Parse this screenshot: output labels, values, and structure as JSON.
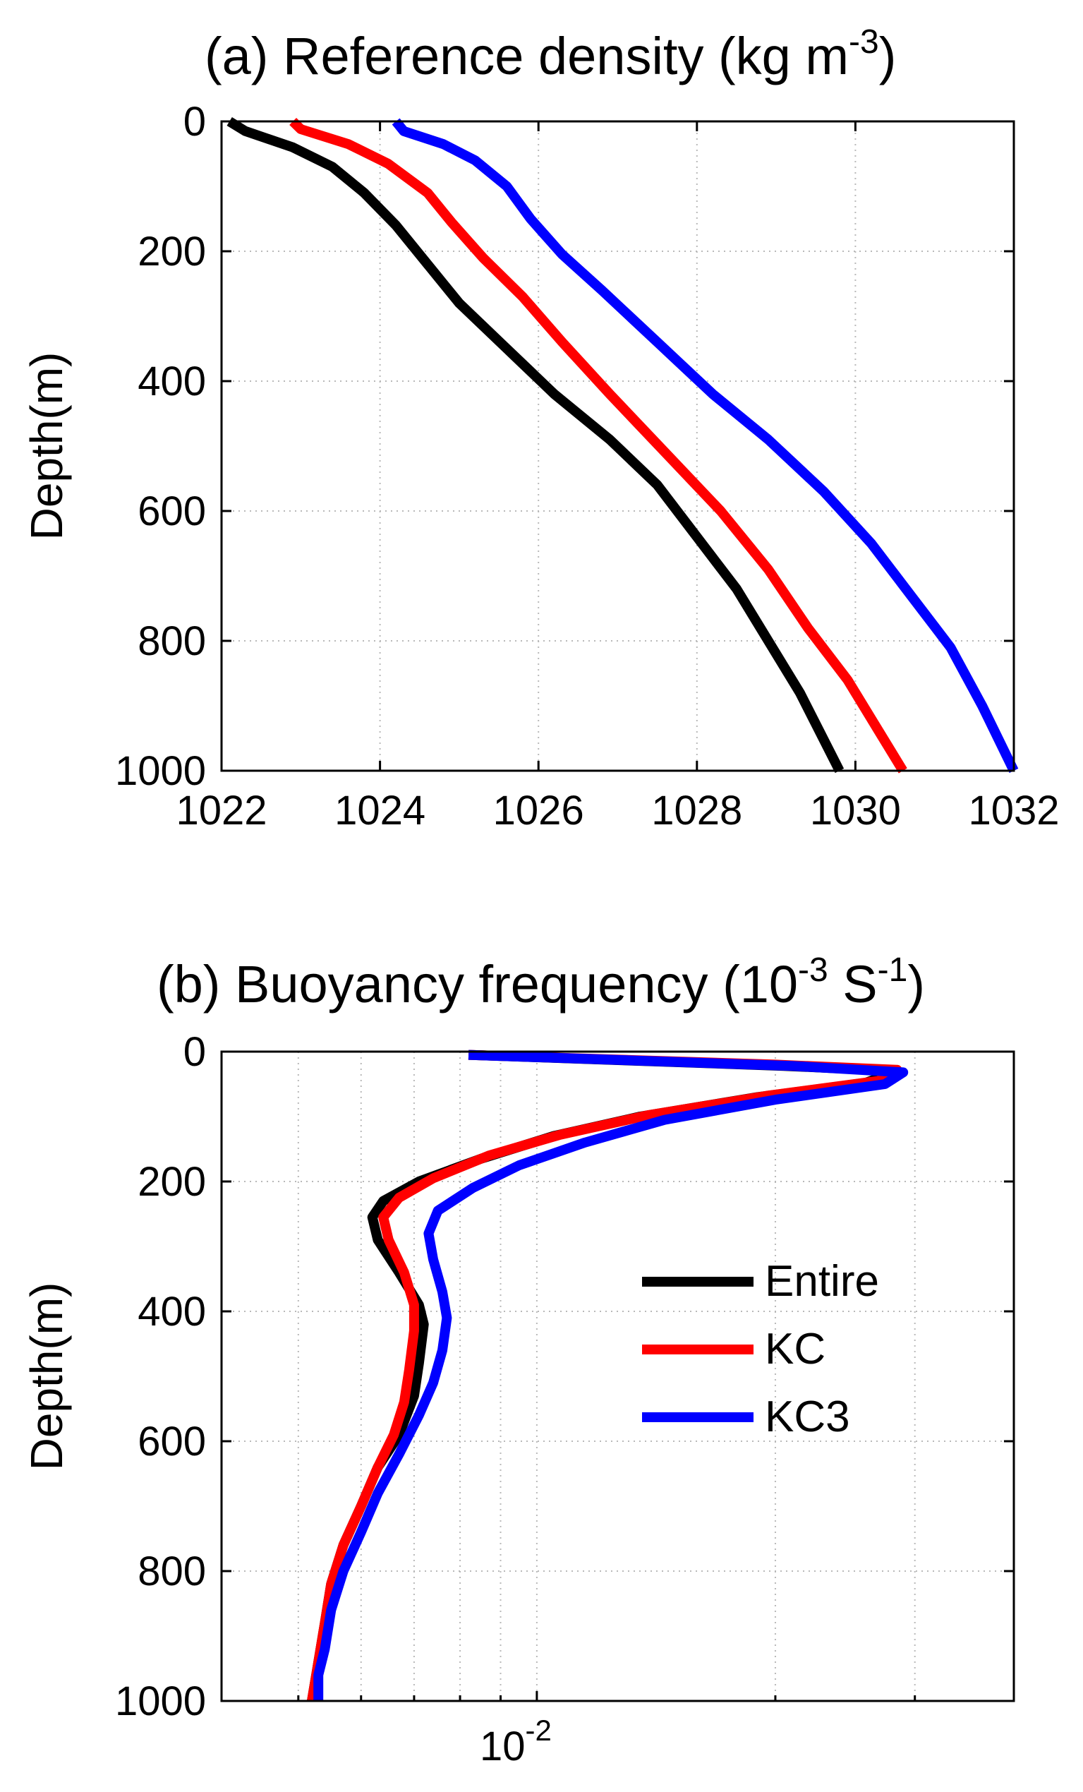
{
  "chart_data": [
    {
      "type": "line",
      "title": "(a) Reference density (kg m",
      "title_sup": "-3",
      "title_close": ")",
      "xlabel": "",
      "ylabel": "Depth(m)",
      "xlim": [
        1022,
        1032
      ],
      "ylim": [
        0,
        1000
      ],
      "y_reversed": true,
      "x_scale": "linear",
      "grid": true,
      "x_ticks": [
        1022,
        1024,
        1026,
        1028,
        1030,
        1032
      ],
      "x_tick_labels": [
        "1022",
        "1024",
        "1026",
        "1028",
        "1030",
        "1032"
      ],
      "y_ticks": [
        0,
        200,
        400,
        600,
        800,
        1000
      ],
      "y_tick_labels": [
        "0",
        "200",
        "400",
        "600",
        "800",
        "1000"
      ],
      "series": [
        {
          "name": "Entire",
          "color": "#000000",
          "points": [
            [
              1022.1,
              0
            ],
            [
              1022.3,
              15
            ],
            [
              1022.9,
              40
            ],
            [
              1023.4,
              70
            ],
            [
              1023.8,
              110
            ],
            [
              1024.2,
              160
            ],
            [
              1024.6,
              220
            ],
            [
              1025.0,
              280
            ],
            [
              1025.6,
              350
            ],
            [
              1026.2,
              420
            ],
            [
              1026.9,
              490
            ],
            [
              1027.5,
              560
            ],
            [
              1028.0,
              640
            ],
            [
              1028.5,
              720
            ],
            [
              1028.9,
              800
            ],
            [
              1029.3,
              880
            ],
            [
              1029.8,
              1000
            ]
          ]
        },
        {
          "name": "KC",
          "color": "#ff0000",
          "points": [
            [
              1022.9,
              0
            ],
            [
              1023.0,
              12
            ],
            [
              1023.6,
              35
            ],
            [
              1024.1,
              65
            ],
            [
              1024.6,
              110
            ],
            [
              1024.9,
              155
            ],
            [
              1025.3,
              210
            ],
            [
              1025.8,
              270
            ],
            [
              1026.3,
              340
            ],
            [
              1026.9,
              420
            ],
            [
              1027.6,
              510
            ],
            [
              1028.3,
              600
            ],
            [
              1028.9,
              690
            ],
            [
              1029.4,
              780
            ],
            [
              1029.9,
              860
            ],
            [
              1030.3,
              940
            ],
            [
              1030.6,
              1000
            ]
          ]
        },
        {
          "name": "KC3",
          "color": "#0000ff",
          "points": [
            [
              1024.2,
              0
            ],
            [
              1024.3,
              15
            ],
            [
              1024.8,
              35
            ],
            [
              1025.2,
              60
            ],
            [
              1025.6,
              100
            ],
            [
              1025.9,
              150
            ],
            [
              1026.3,
              205
            ],
            [
              1026.8,
              260
            ],
            [
              1027.5,
              340
            ],
            [
              1028.2,
              420
            ],
            [
              1028.9,
              490
            ],
            [
              1029.6,
              570
            ],
            [
              1030.2,
              650
            ],
            [
              1030.7,
              730
            ],
            [
              1031.2,
              810
            ],
            [
              1031.6,
              900
            ],
            [
              1032.0,
              1000
            ]
          ]
        }
      ]
    },
    {
      "type": "line",
      "title": "(b) Buoyancy frequency (10",
      "title_sup": "-3",
      "title_mid": " S",
      "title_sup2": "-1",
      "title_close": ")",
      "xlabel": "",
      "ylabel": "Depth(m)",
      "x_scale": "log",
      "xlim": [
        0.004,
        0.04
      ],
      "ylim": [
        0,
        1000
      ],
      "y_reversed": true,
      "grid": true,
      "x_ticks": [
        0.01
      ],
      "x_tick_label_base": "10",
      "x_tick_label_exp": "-2",
      "x_minor_ticks": [
        0.005,
        0.006,
        0.007,
        0.008,
        0.009,
        0.02,
        0.03
      ],
      "y_ticks": [
        0,
        200,
        400,
        600,
        800,
        1000
      ],
      "y_tick_labels": [
        "0",
        "200",
        "400",
        "600",
        "800",
        "1000"
      ],
      "legend": {
        "position": "right-middle",
        "entries": [
          "Entire",
          "KC",
          "KC3"
        ]
      },
      "series": [
        {
          "name": "Entire",
          "color": "#000000",
          "points": [
            [
              0.0082,
              5
            ],
            [
              0.0205,
              22
            ],
            [
              0.0285,
              30
            ],
            [
              0.026,
              48
            ],
            [
              0.019,
              70
            ],
            [
              0.0135,
              100
            ],
            [
              0.0105,
              130
            ],
            [
              0.0085,
              165
            ],
            [
              0.0071,
              200
            ],
            [
              0.0064,
              230
            ],
            [
              0.0062,
              255
            ],
            [
              0.0063,
              290
            ],
            [
              0.0067,
              340
            ],
            [
              0.0071,
              390
            ],
            [
              0.0072,
              420
            ],
            [
              0.0071,
              480
            ],
            [
              0.007,
              530
            ],
            [
              0.0067,
              590
            ],
            [
              0.0063,
              640
            ],
            [
              0.006,
              700
            ],
            [
              0.0057,
              760
            ],
            [
              0.0055,
              820
            ],
            [
              0.0054,
              880
            ],
            [
              0.0053,
              940
            ],
            [
              0.0052,
              1000
            ]
          ]
        },
        {
          "name": "KC",
          "color": "#ff0000",
          "points": [
            [
              0.0082,
              5
            ],
            [
              0.02,
              20
            ],
            [
              0.0285,
              28
            ],
            [
              0.027,
              45
            ],
            [
              0.0195,
              68
            ],
            [
              0.0138,
              98
            ],
            [
              0.0107,
              128
            ],
            [
              0.0087,
              160
            ],
            [
              0.0074,
              195
            ],
            [
              0.0067,
              225
            ],
            [
              0.0064,
              255
            ],
            [
              0.0065,
              290
            ],
            [
              0.0068,
              340
            ],
            [
              0.007,
              390
            ],
            [
              0.007,
              430
            ],
            [
              0.0069,
              490
            ],
            [
              0.0068,
              540
            ],
            [
              0.0066,
              590
            ],
            [
              0.0063,
              640
            ],
            [
              0.006,
              700
            ],
            [
              0.0057,
              760
            ],
            [
              0.0055,
              820
            ],
            [
              0.0054,
              880
            ],
            [
              0.0053,
              940
            ],
            [
              0.0052,
              1000
            ]
          ]
        },
        {
          "name": "KC3",
          "color": "#0000ff",
          "points": [
            [
              0.0082,
              5
            ],
            [
              0.021,
              22
            ],
            [
              0.029,
              32
            ],
            [
              0.0275,
              50
            ],
            [
              0.02,
              74
            ],
            [
              0.0145,
              105
            ],
            [
              0.0115,
              140
            ],
            [
              0.0095,
              175
            ],
            [
              0.0083,
              210
            ],
            [
              0.0075,
              245
            ],
            [
              0.0073,
              280
            ],
            [
              0.0074,
              320
            ],
            [
              0.0076,
              370
            ],
            [
              0.0077,
              410
            ],
            [
              0.0076,
              460
            ],
            [
              0.0074,
              510
            ],
            [
              0.0071,
              560
            ],
            [
              0.0067,
              620
            ],
            [
              0.0063,
              680
            ],
            [
              0.006,
              740
            ],
            [
              0.0057,
              800
            ],
            [
              0.0055,
              860
            ],
            [
              0.0054,
              920
            ],
            [
              0.0053,
              960
            ],
            [
              0.0053,
              1000
            ]
          ]
        }
      ]
    }
  ]
}
